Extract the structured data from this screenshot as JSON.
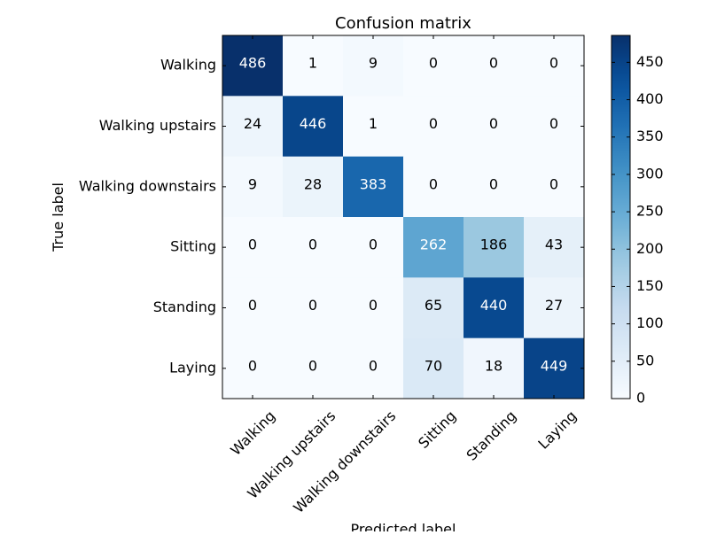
{
  "chart_data": {
    "type": "heatmap",
    "title": "Confusion matrix",
    "xlabel": "Predicted label",
    "ylabel": "True label",
    "x_categories": [
      "Walking",
      "Walking upstairs",
      "Walking downstairs",
      "Sitting",
      "Standing",
      "Laying"
    ],
    "y_categories": [
      "Walking",
      "Walking upstairs",
      "Walking downstairs",
      "Sitting",
      "Standing",
      "Laying"
    ],
    "values": [
      [
        486,
        1,
        9,
        0,
        0,
        0
      ],
      [
        24,
        446,
        1,
        0,
        0,
        0
      ],
      [
        9,
        28,
        383,
        0,
        0,
        0
      ],
      [
        0,
        0,
        0,
        262,
        186,
        43
      ],
      [
        0,
        0,
        0,
        65,
        440,
        27
      ],
      [
        0,
        0,
        0,
        70,
        18,
        449
      ]
    ],
    "colormap": "Blues",
    "vmin": 0,
    "vmax": 486,
    "colorbar_ticks": [
      0,
      50,
      100,
      150,
      200,
      250,
      300,
      350,
      400,
      450
    ],
    "grid": false,
    "colors": {
      "low": "#f7fbff",
      "high": "#08306b",
      "text_light": "#ffffff",
      "text_dark": "#000000"
    }
  }
}
